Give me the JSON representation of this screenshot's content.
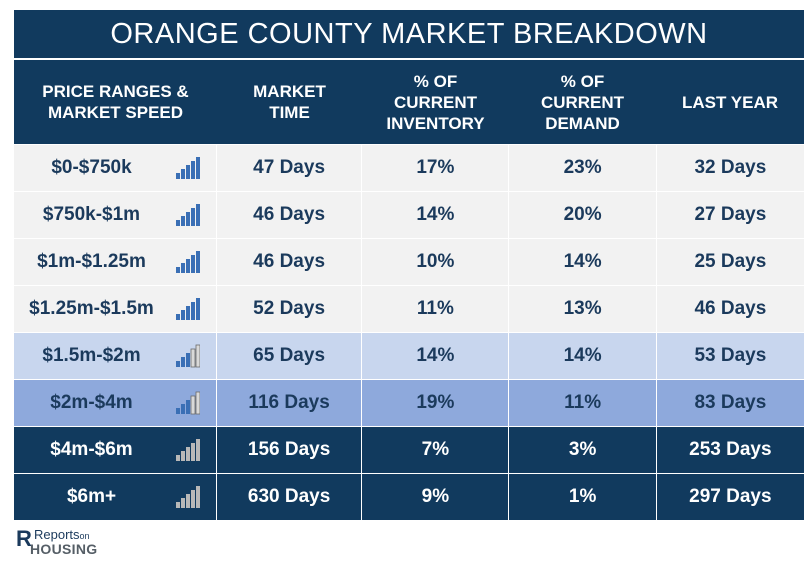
{
  "title": "ORANGE COUNTY MARKET BREAKDOWN",
  "headers": [
    "PRICE RANGES &\nMARKET SPEED",
    "MARKET\nTIME",
    "% OF\nCURRENT\nINVENTORY",
    "% OF\nCURRENT\nDEMAND",
    "LAST YEAR"
  ],
  "rows": [
    {
      "price": "$0-$750k",
      "market_time": "47 Days",
      "inventory": "17%",
      "demand": "23%",
      "last_year": "32 Days",
      "speed_icon": "bar-chart-icon-blue",
      "tone": "light"
    },
    {
      "price": "$750k-$1m",
      "market_time": "46 Days",
      "inventory": "14%",
      "demand": "20%",
      "last_year": "27 Days",
      "speed_icon": "bar-chart-icon-blue",
      "tone": "light"
    },
    {
      "price": "$1m-$1.25m",
      "market_time": "46 Days",
      "inventory": "10%",
      "demand": "14%",
      "last_year": "25 Days",
      "speed_icon": "bar-chart-icon-blue",
      "tone": "light"
    },
    {
      "price": "$1.25m-$1.5m",
      "market_time": "52 Days",
      "inventory": "11%",
      "demand": "13%",
      "last_year": "46 Days",
      "speed_icon": "bar-chart-icon-blue",
      "tone": "light"
    },
    {
      "price": "$1.5m-$2m",
      "market_time": "65 Days",
      "inventory": "14%",
      "demand": "14%",
      "last_year": "53 Days",
      "speed_icon": "bar-chart-icon-partial",
      "tone": "mid"
    },
    {
      "price": "$2m-$4m",
      "market_time": "116 Days",
      "inventory": "19%",
      "demand": "11%",
      "last_year": "83 Days",
      "speed_icon": "bar-chart-icon-partial",
      "tone": "med"
    },
    {
      "price": "$4m-$6m",
      "market_time": "156 Days",
      "inventory": "7%",
      "demand": "3%",
      "last_year": "253 Days",
      "speed_icon": "bar-chart-icon-grey",
      "tone": "dark"
    },
    {
      "price": "$6m+",
      "market_time": "630 Days",
      "inventory": "9%",
      "demand": "1%",
      "last_year": "297 Days",
      "speed_icon": "bar-chart-icon-grey",
      "tone": "dark"
    }
  ],
  "colors": {
    "header": "#113a5e",
    "row_light": "#f2f2f2",
    "row_mid": "#c8d6ee",
    "row_med": "#8ea9dc",
    "bar_blue": "#3a6fb5",
    "bar_grey": "#b8b8b8"
  },
  "logo": {
    "reports": "Reports",
    "on": "on",
    "housing": "HOUSING"
  }
}
